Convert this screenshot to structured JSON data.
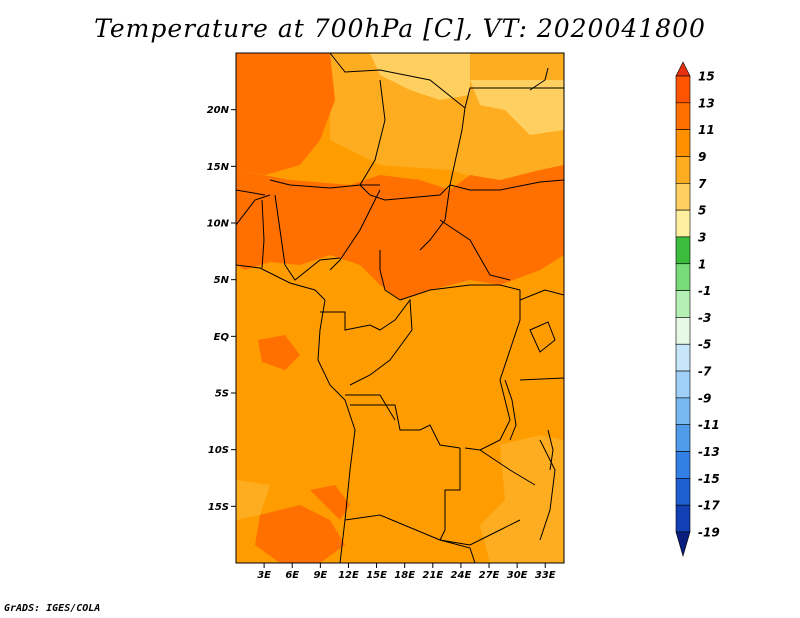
{
  "title": "Temperature at 700hPa [C], VT: 2020041800",
  "credit": "GrADS: IGES/COLA",
  "map": {
    "lon_range": [
      0,
      35
    ],
    "lat_range": [
      -20,
      25
    ],
    "lat_ticks": [
      {
        "value": 20,
        "label": "20N"
      },
      {
        "value": 15,
        "label": "15N"
      },
      {
        "value": 10,
        "label": "10N"
      },
      {
        "value": 5,
        "label": "5N"
      },
      {
        "value": 0,
        "label": "EQ"
      },
      {
        "value": -5,
        "label": "5S"
      },
      {
        "value": -10,
        "label": "10S"
      },
      {
        "value": -15,
        "label": "15S"
      }
    ],
    "lon_ticks": [
      {
        "value": 3,
        "label": "3E"
      },
      {
        "value": 6,
        "label": "6E"
      },
      {
        "value": 9,
        "label": "9E"
      },
      {
        "value": 12,
        "label": "12E"
      },
      {
        "value": 15,
        "label": "15E"
      },
      {
        "value": 18,
        "label": "18E"
      },
      {
        "value": 21,
        "label": "21E"
      },
      {
        "value": 24,
        "label": "24E"
      },
      {
        "value": 27,
        "label": "27E"
      },
      {
        "value": 30,
        "label": "30E"
      },
      {
        "value": 33,
        "label": "33E"
      }
    ]
  },
  "colorbar": {
    "labels": [
      "15",
      "13",
      "11",
      "9",
      "7",
      "5",
      "3",
      "1",
      "-1",
      "-3",
      "-5",
      "-7",
      "-9",
      "-11",
      "-13",
      "-15",
      "-17",
      "-19"
    ],
    "colors": [
      "#e83010",
      "#ff5500",
      "#ff7000",
      "#ff9000",
      "#ffad20",
      "#ffd060",
      "#fff0a0",
      "#3cbc3c",
      "#78dc78",
      "#b4f0b4",
      "#e6f8e6",
      "#c8e6fa",
      "#a0d0f5",
      "#78b8f0",
      "#509ceb",
      "#3280e6",
      "#1e60d2",
      "#1040b4",
      "#0a1e80",
      "#dcdcf5"
    ]
  }
}
